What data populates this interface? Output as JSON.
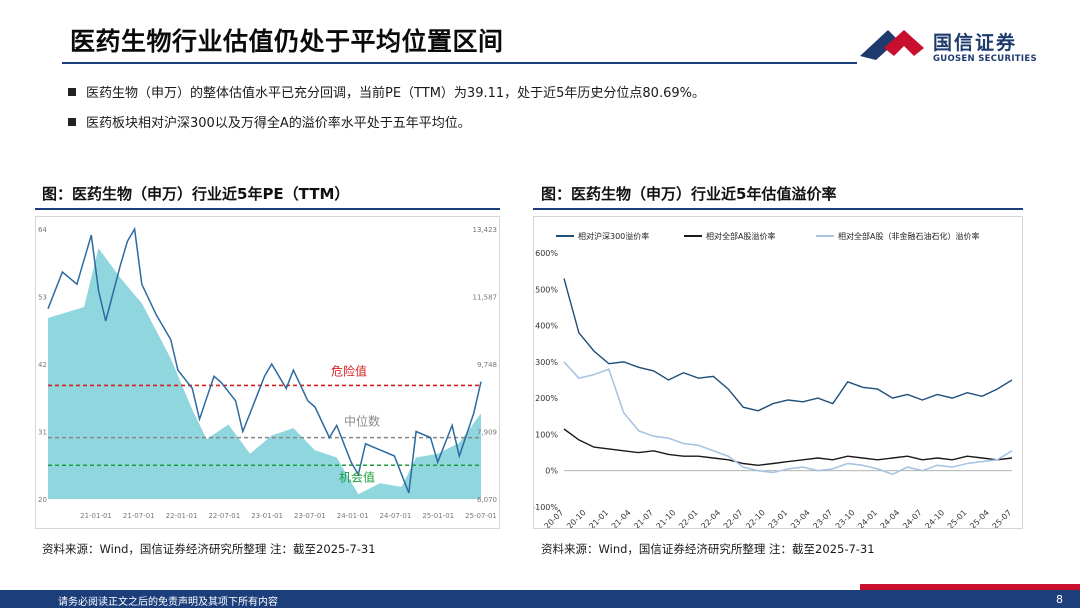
{
  "slide": {
    "title": "医药生物行业估值仍处于平均位置区间",
    "bullets": [
      "医药生物（申万）的整体估值水平已充分回调，当前PE（TTM）为39.11，处于近5年历史分位点80.69%。",
      "医药板块相对沪深300以及万得全A的溢价率水平处于五年平均位。"
    ],
    "footer_text": "请务必阅读正文之后的免责声明及其项下所有内容",
    "page_number": "8"
  },
  "logo": {
    "cn": "国信证券",
    "en": "GUOSEN SECURITIES",
    "colors": {
      "blue": "#1f3b6e",
      "red": "#c8102e"
    }
  },
  "chart_data": [
    {
      "type": "line",
      "title": "图：医药生物（申万）行业近5年PE（TTM）",
      "source": "资料来源：Wind，国信证券经济研究所整理 注：截至2025-7-31",
      "x_ticks": [
        "21-01-01",
        "21-07-01",
        "22-01-01",
        "22-07-01",
        "23-01-01",
        "23-07-01",
        "24-01-01",
        "24-07-01",
        "25-01-01",
        "25-07-01"
      ],
      "y_left_ticks": [
        "64",
        "53",
        "42",
        "31",
        "20"
      ],
      "y_right_ticks": [
        "13,423",
        "11,587",
        "9,748",
        "7,909",
        "6,070"
      ],
      "ylim_left": [
        20,
        64
      ],
      "ylim_right": [
        6070,
        13423
      ],
      "pe_series": {
        "color": "#2c6aa0",
        "x": [
          "2020-07",
          "2020-09",
          "2020-11",
          "2021-01",
          "2021-02",
          "2021-03",
          "2021-05",
          "2021-06",
          "2021-07",
          "2021-08",
          "2021-10",
          "2021-12",
          "2022-01",
          "2022-03",
          "2022-04",
          "2022-06",
          "2022-07",
          "2022-09",
          "2022-10",
          "2022-11",
          "2023-01",
          "2023-02",
          "2023-04",
          "2023-05",
          "2023-07",
          "2023-08",
          "2023-10",
          "2023-11",
          "2024-01",
          "2024-02",
          "2024-03",
          "2024-05",
          "2024-07",
          "2024-09",
          "2024-10",
          "2024-12",
          "2025-01",
          "2025-03",
          "2025-04",
          "2025-06",
          "2025-07"
        ],
        "y": [
          51,
          57,
          55,
          63,
          54,
          49,
          58,
          62,
          64,
          55,
          50,
          46,
          41,
          38,
          33,
          40,
          39,
          36,
          31,
          34,
          40,
          42,
          38,
          41,
          36,
          35,
          30,
          32,
          26,
          24,
          29,
          28,
          27,
          21,
          31,
          30,
          26,
          32,
          27,
          34,
          39.11
        ]
      },
      "index_area": {
        "color": "#7ccfd8",
        "x": [
          "2020-07",
          "2020-12",
          "2021-02",
          "2021-05",
          "2021-08",
          "2021-12",
          "2022-03",
          "2022-05",
          "2022-08",
          "2022-11",
          "2023-02",
          "2023-05",
          "2023-08",
          "2023-11",
          "2024-02",
          "2024-05",
          "2024-08",
          "2024-10",
          "2025-01",
          "2025-04",
          "2025-07"
        ],
        "y": [
          11000,
          11300,
          12900,
          12100,
          11400,
          9900,
          8500,
          7700,
          8100,
          7300,
          7800,
          8000,
          7400,
          7200,
          6200,
          6500,
          6400,
          7200,
          7300,
          7600,
          8400
        ]
      },
      "reference_lines": [
        {
          "label": "危险值",
          "value": 38.5,
          "color": "#d61f1f"
        },
        {
          "label": "中位数",
          "value": 30.0,
          "color": "#888888"
        },
        {
          "label": "机会值",
          "value": 25.5,
          "color": "#1b9e3a"
        }
      ]
    },
    {
      "type": "line",
      "title": "图：医药生物（申万）行业近5年估值溢价率",
      "source": "资料来源：Wind，国信证券经济研究所整理 注：截至2025-7-31",
      "y_ticks": [
        "600%",
        "500%",
        "400%",
        "300%",
        "200%",
        "100%",
        "0%",
        "-100%"
      ],
      "ylim": [
        -100,
        600
      ],
      "x_ticks": [
        "20-07",
        "20-10",
        "21-01",
        "21-04",
        "21-07",
        "21-10",
        "22-01",
        "22-04",
        "22-07",
        "22-10",
        "23-01",
        "23-04",
        "23-07",
        "23-10",
        "24-01",
        "24-04",
        "24-07",
        "24-10",
        "25-01",
        "25-04",
        "25-07"
      ],
      "series": [
        {
          "name": "相对沪深300溢价率",
          "color": "#1f4e79",
          "x": [
            "2020-07",
            "2020-09",
            "2020-11",
            "2021-01",
            "2021-03",
            "2021-05",
            "2021-07",
            "2021-09",
            "2021-11",
            "2022-01",
            "2022-03",
            "2022-05",
            "2022-07",
            "2022-09",
            "2022-11",
            "2023-01",
            "2023-03",
            "2023-05",
            "2023-07",
            "2023-09",
            "2023-11",
            "2024-01",
            "2024-03",
            "2024-05",
            "2024-07",
            "2024-09",
            "2024-11",
            "2025-01",
            "2025-03",
            "2025-05",
            "2025-07"
          ],
          "values": [
            530,
            380,
            330,
            295,
            300,
            285,
            275,
            250,
            270,
            255,
            260,
            225,
            175,
            165,
            185,
            195,
            190,
            200,
            185,
            245,
            230,
            225,
            200,
            210,
            195,
            210,
            200,
            215,
            205,
            225,
            250
          ]
        },
        {
          "name": "相对全部A股溢价率",
          "color": "#1a1a1a",
          "x": [
            "2020-07",
            "2020-09",
            "2020-11",
            "2021-01",
            "2021-03",
            "2021-05",
            "2021-07",
            "2021-09",
            "2021-11",
            "2022-01",
            "2022-03",
            "2022-05",
            "2022-07",
            "2022-09",
            "2022-11",
            "2023-01",
            "2023-03",
            "2023-05",
            "2023-07",
            "2023-09",
            "2023-11",
            "2024-01",
            "2024-03",
            "2024-05",
            "2024-07",
            "2024-09",
            "2024-11",
            "2025-01",
            "2025-03",
            "2025-05",
            "2025-07"
          ],
          "values": [
            115,
            85,
            65,
            60,
            55,
            50,
            55,
            45,
            40,
            40,
            35,
            30,
            20,
            15,
            20,
            25,
            30,
            35,
            30,
            40,
            35,
            30,
            35,
            40,
            30,
            35,
            30,
            40,
            35,
            30,
            35
          ]
        },
        {
          "name": "相对全部A股（非金融石油石化）溢价率",
          "color": "#a9c4e0",
          "x": [
            "2020-07",
            "2020-09",
            "2020-11",
            "2021-01",
            "2021-03",
            "2021-05",
            "2021-07",
            "2021-09",
            "2021-11",
            "2022-01",
            "2022-03",
            "2022-05",
            "2022-07",
            "2022-09",
            "2022-11",
            "2023-01",
            "2023-03",
            "2023-05",
            "2023-07",
            "2023-09",
            "2023-11",
            "2024-01",
            "2024-03",
            "2024-05",
            "2024-07",
            "2024-09",
            "2024-11",
            "2025-01",
            "2025-03",
            "2025-05",
            "2025-07"
          ],
          "values": [
            300,
            255,
            265,
            280,
            160,
            110,
            95,
            90,
            75,
            70,
            55,
            40,
            10,
            0,
            -5,
            5,
            10,
            0,
            5,
            20,
            15,
            5,
            -10,
            10,
            0,
            15,
            10,
            20,
            25,
            30,
            55
          ]
        }
      ]
    }
  ]
}
